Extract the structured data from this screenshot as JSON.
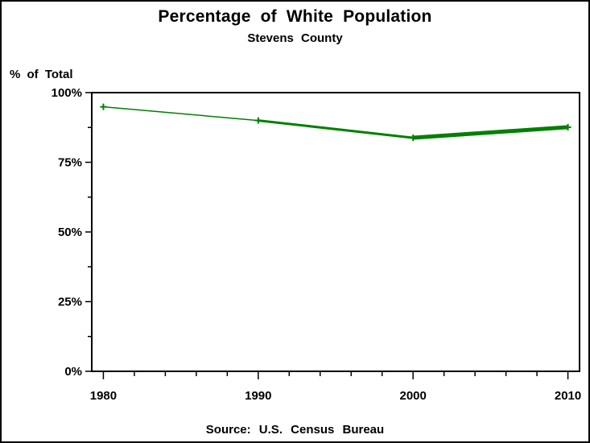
{
  "header": {
    "title": "Percentage of White Population",
    "subtitle": "Stevens County"
  },
  "footer": {
    "source": "Source: U.S. Census Bureau"
  },
  "chart_data": {
    "type": "line",
    "title": "Percentage of White Population",
    "subtitle": "Stevens County",
    "xlabel": "",
    "ylabel": "% of Total",
    "source_note": "Source: U.S. Census Bureau",
    "x": [
      1980,
      1990,
      2000,
      2010
    ],
    "series": [
      {
        "name": "Percent of white population",
        "values": [
          94.9,
          90.0,
          83.8,
          87.6
        ]
      }
    ],
    "line_color": "#008000",
    "line_widths": [
      1.5,
      3,
      5
    ],
    "marker": "plus",
    "ink_color": "#000000",
    "grid": false,
    "frame": true,
    "legend": "none",
    "axes": {
      "x": {
        "lim": [
          1979.25,
          2010.75
        ],
        "majors": [
          1980,
          1990,
          2000,
          2010
        ],
        "labels": [
          "1980",
          "1990",
          "2000",
          "2010"
        ],
        "minor_step": 2
      },
      "y": {
        "lim": [
          0,
          100
        ],
        "majors": [
          0,
          25,
          50,
          75,
          100
        ],
        "labels": [
          "0%",
          "25%",
          "50%",
          "75%",
          "100%"
        ],
        "minor_step": 12.5
      }
    }
  }
}
